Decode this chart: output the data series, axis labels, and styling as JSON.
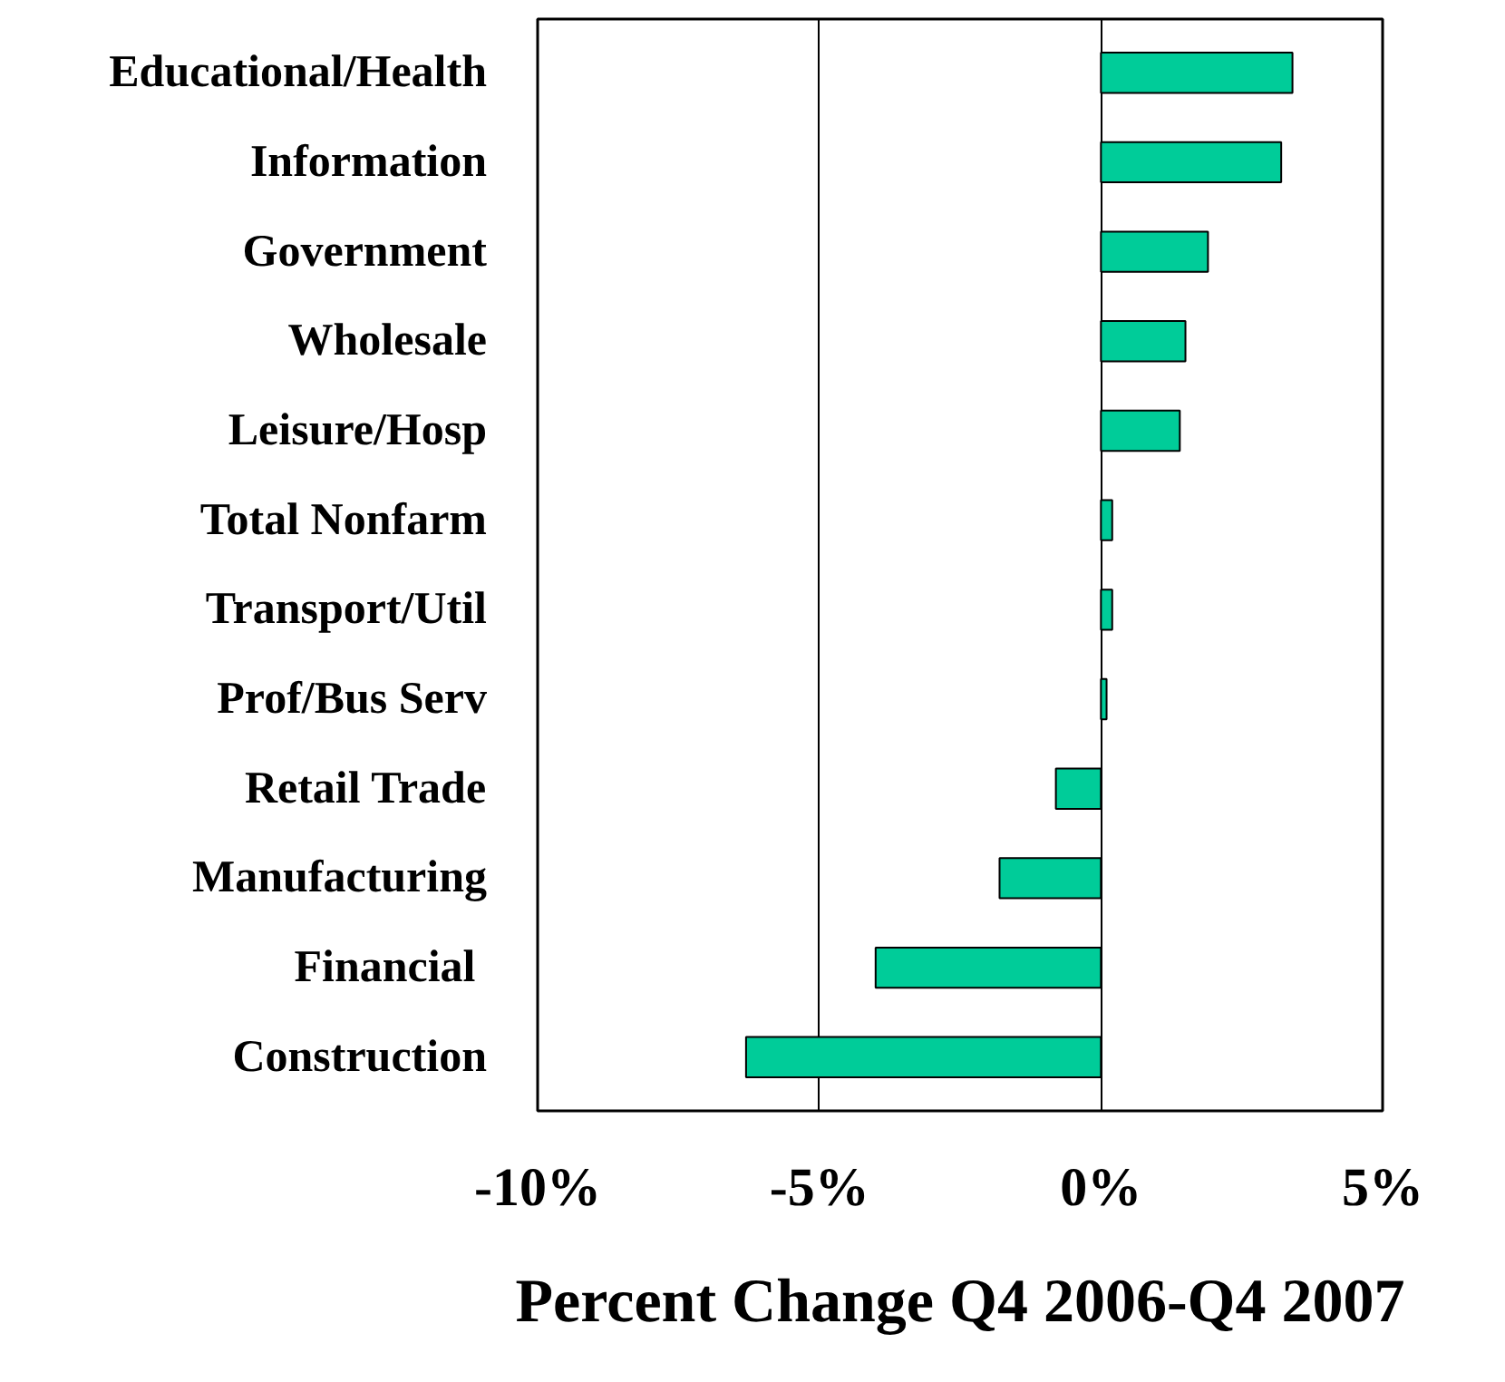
{
  "chart_data": {
    "type": "bar",
    "orientation": "horizontal",
    "xlabel": "Percent Change Q4 2006-Q4 2007",
    "categories": [
      "Educational/Health",
      "Information",
      "Government",
      "Wholesale",
      "Leisure/Hosp",
      "Total Nonfarm",
      "Transport/Util",
      "Prof/Bus Serv",
      "Retail Trade",
      "Manufacturing",
      "Financial ",
      "Construction"
    ],
    "values": [
      3.4,
      3.2,
      1.9,
      1.5,
      1.4,
      0.2,
      0.2,
      0.1,
      -0.8,
      -1.8,
      -4.0,
      -6.3
    ],
    "color": "#00cc99",
    "xlim": [
      -10,
      5
    ],
    "xticks": [
      {
        "value": -10,
        "label": "-10%"
      },
      {
        "value": -5,
        "label": "-5%"
      },
      {
        "value": 0,
        "label": "0%"
      },
      {
        "value": 5,
        "label": "5%"
      }
    ],
    "grid": "x"
  }
}
